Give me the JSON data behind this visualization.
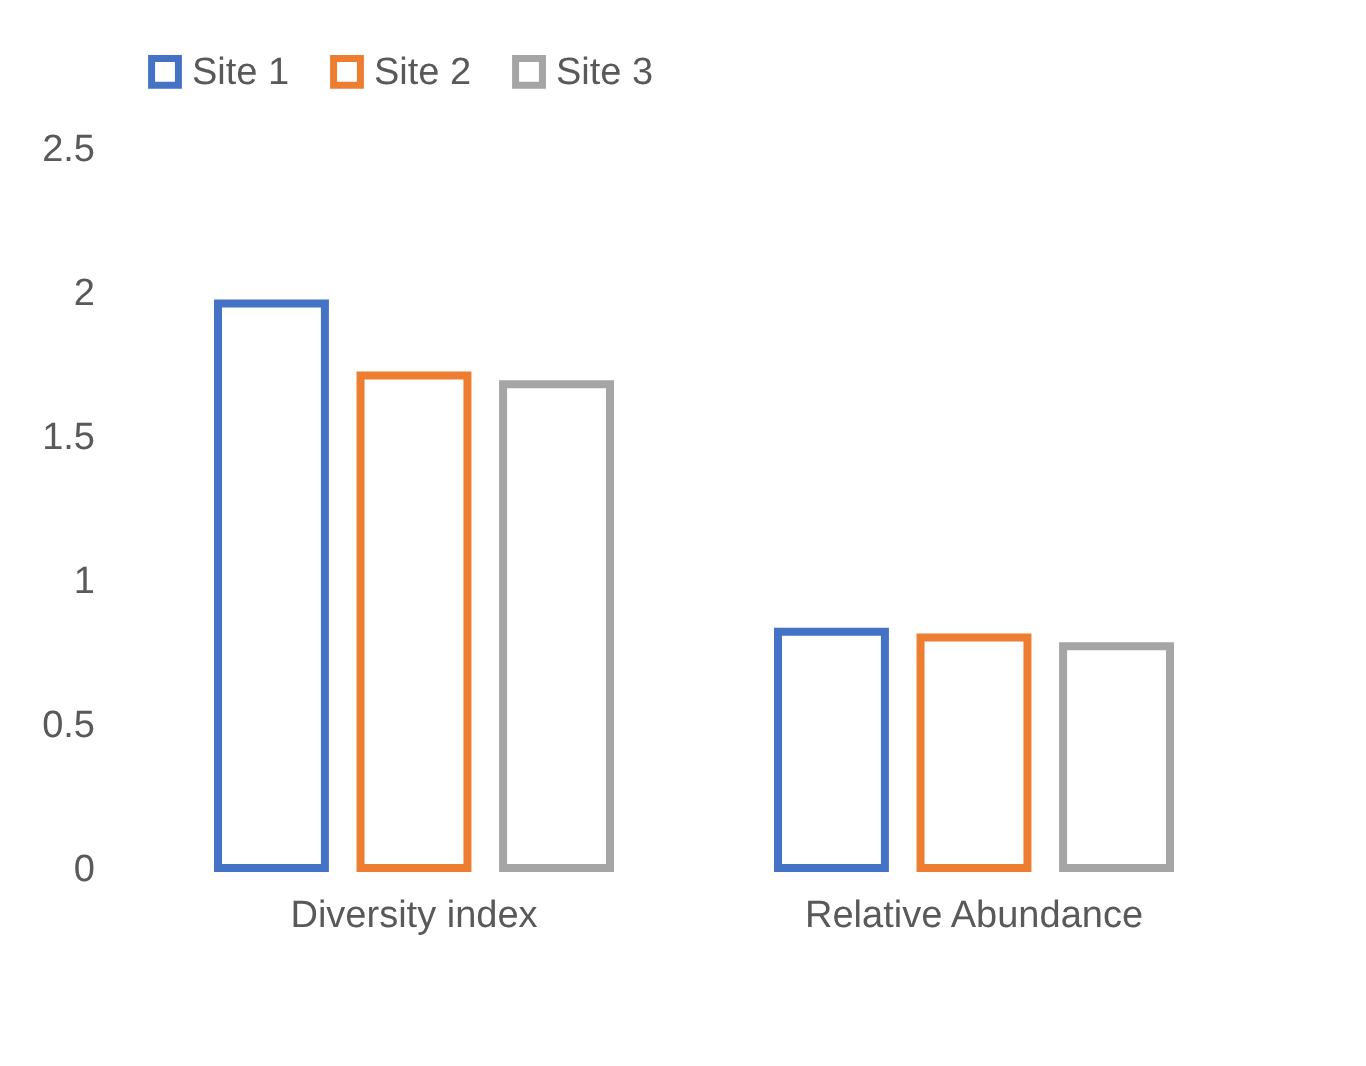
{
  "chart_data": {
    "type": "bar",
    "categories": [
      "Diversity index",
      "Relative Abundance"
    ],
    "series": [
      {
        "name": "Site 1",
        "color": "#4472c4",
        "values": [
          1.96,
          0.82
        ]
      },
      {
        "name": "Site 2",
        "color": "#ed7d31",
        "values": [
          1.71,
          0.8
        ]
      },
      {
        "name": "Site 3",
        "color": "#a5a5a5",
        "values": [
          1.68,
          0.77
        ]
      }
    ],
    "ylim": [
      0,
      2.5
    ],
    "yticks": [
      0,
      0.5,
      1,
      1.5,
      2,
      2.5
    ],
    "legend": "top",
    "grid": false
  }
}
